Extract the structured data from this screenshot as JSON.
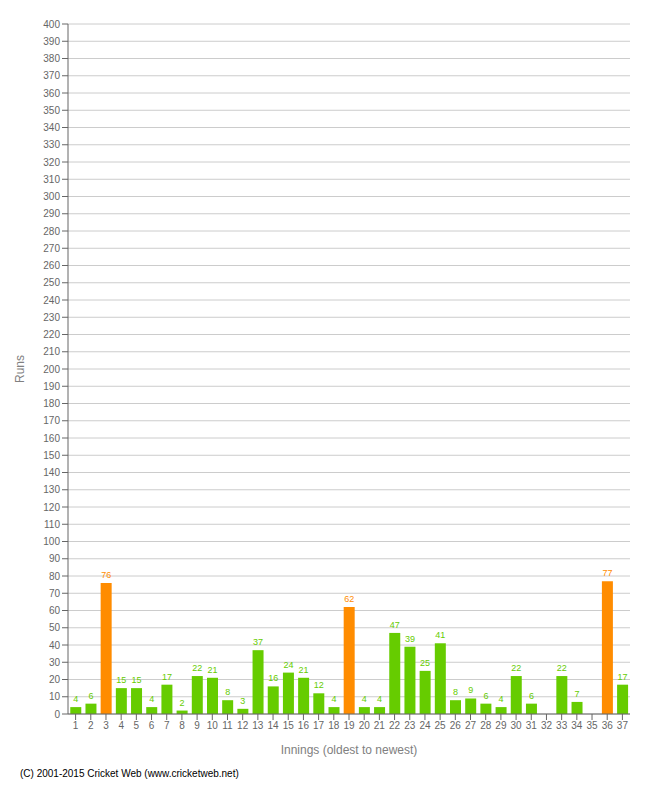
{
  "chart_data": {
    "type": "bar",
    "xlabel": "Innings (oldest to newest)",
    "ylabel": "Runs",
    "categories": [
      "1",
      "2",
      "3",
      "4",
      "5",
      "6",
      "7",
      "8",
      "9",
      "10",
      "11",
      "12",
      "13",
      "14",
      "15",
      "16",
      "17",
      "18",
      "19",
      "20",
      "21",
      "22",
      "23",
      "24",
      "25",
      "26",
      "27",
      "28",
      "29",
      "30",
      "31",
      "32",
      "33",
      "34",
      "35",
      "36",
      "37"
    ],
    "values": [
      4,
      6,
      76,
      15,
      15,
      4,
      17,
      2,
      22,
      21,
      8,
      3,
      37,
      16,
      24,
      21,
      12,
      4,
      62,
      4,
      4,
      47,
      39,
      25,
      41,
      8,
      9,
      6,
      4,
      22,
      6,
      0,
      22,
      7,
      0,
      77,
      17
    ],
    "colors": [
      "#66cc00",
      "#66cc00",
      "#ff8c00",
      "#66cc00",
      "#66cc00",
      "#66cc00",
      "#66cc00",
      "#66cc00",
      "#66cc00",
      "#66cc00",
      "#66cc00",
      "#66cc00",
      "#66cc00",
      "#66cc00",
      "#66cc00",
      "#66cc00",
      "#66cc00",
      "#66cc00",
      "#ff8c00",
      "#66cc00",
      "#66cc00",
      "#66cc00",
      "#66cc00",
      "#66cc00",
      "#66cc00",
      "#66cc00",
      "#66cc00",
      "#66cc00",
      "#66cc00",
      "#66cc00",
      "#66cc00",
      "#66cc00",
      "#66cc00",
      "#66cc00",
      "#66cc00",
      "#ff8c00",
      "#66cc00"
    ],
    "data_labels": true,
    "ylim": [
      0,
      400
    ],
    "yticks": [
      0,
      10,
      20,
      30,
      40,
      50,
      60,
      70,
      80,
      90,
      100,
      110,
      120,
      130,
      140,
      150,
      160,
      170,
      180,
      190,
      200,
      210,
      220,
      230,
      240,
      250,
      260,
      270,
      280,
      290,
      300,
      310,
      320,
      330,
      340,
      350,
      360,
      370,
      380,
      390,
      400
    ],
    "grid": true,
    "annotations": [
      "(C) 2001-2015 Cricket Web (www.cricketweb.net)"
    ]
  }
}
